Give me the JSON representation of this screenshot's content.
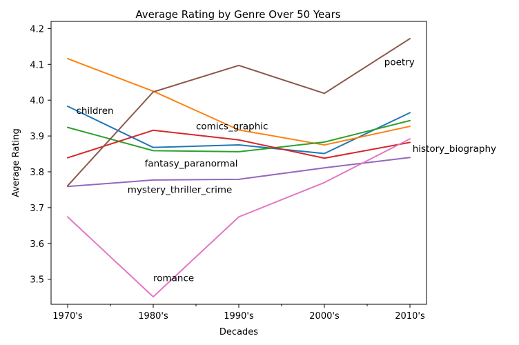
{
  "chart_data": {
    "type": "line",
    "title": "Average Rating by Genre Over 50 Years",
    "xlabel": "Decades",
    "ylabel": "Average Rating",
    "categories": [
      "1970's",
      "1980's",
      "1990's",
      "2000's",
      "2010's"
    ],
    "ylim": [
      3.43,
      4.22
    ],
    "yticks": [
      3.5,
      3.6,
      3.7,
      3.8,
      3.9,
      4.0,
      4.1,
      4.2
    ],
    "legend": "none",
    "grid": false,
    "series": [
      {
        "name": "children",
        "color": "#1f77b4",
        "values": [
          3.983,
          3.868,
          3.875,
          3.851,
          3.965
        ]
      },
      {
        "name": "comics_graphic",
        "color": "#ff7f0e",
        "values": [
          4.116,
          4.025,
          3.917,
          3.875,
          3.927
        ]
      },
      {
        "name": "fantasy_paranormal",
        "color": "#2ca02c",
        "values": [
          3.924,
          3.859,
          3.856,
          3.883,
          3.943
        ]
      },
      {
        "name": "history_biography",
        "color": "#d62728",
        "values": [
          3.839,
          3.916,
          3.889,
          3.838,
          3.882
        ]
      },
      {
        "name": "mystery_thriller_crime",
        "color": "#9467bd",
        "values": [
          3.759,
          3.777,
          3.779,
          3.811,
          3.84
        ]
      },
      {
        "name": "poetry",
        "color": "#8c564b",
        "values": [
          3.761,
          4.023,
          4.097,
          4.019,
          4.172
        ]
      },
      {
        "name": "romance",
        "color": "#e377c2",
        "values": [
          3.674,
          3.451,
          3.674,
          3.77,
          3.892
        ]
      }
    ],
    "annotations": [
      {
        "text": "children",
        "x": 0.1,
        "y": 3.962
      },
      {
        "text": "comics_graphic",
        "x": 1.5,
        "y": 3.918
      },
      {
        "text": "fantasy_paranormal",
        "x": 0.9,
        "y": 3.814
      },
      {
        "text": "history_biography",
        "x": 4.03,
        "y": 3.856
      },
      {
        "text": "mystery_thriller_crime",
        "x": 0.7,
        "y": 3.741
      },
      {
        "text": "poetry",
        "x": 3.7,
        "y": 4.098
      },
      {
        "text": "romance",
        "x": 1.0,
        "y": 3.495
      }
    ]
  }
}
